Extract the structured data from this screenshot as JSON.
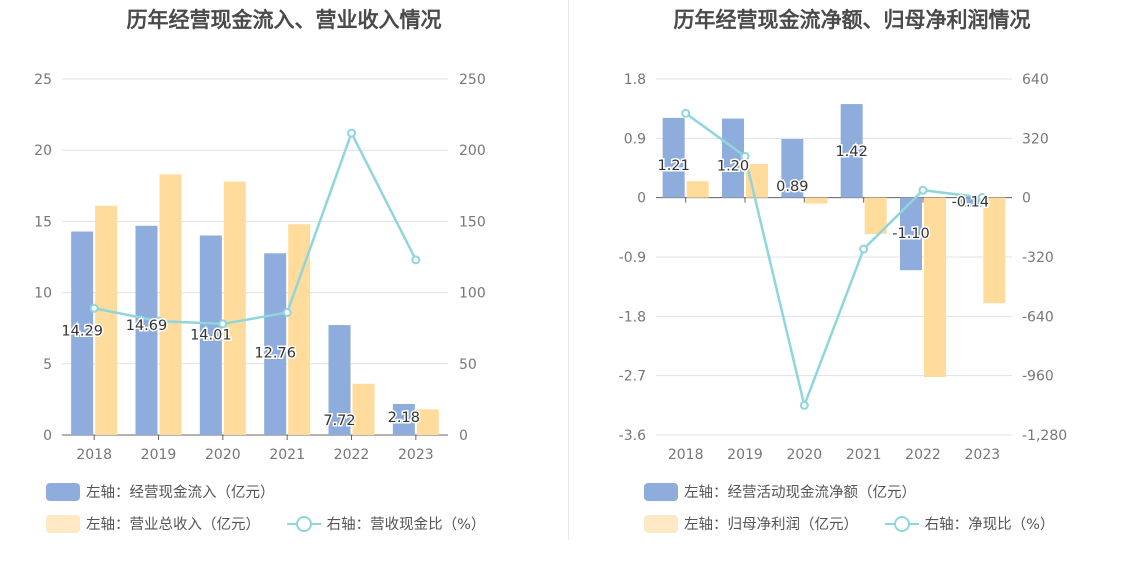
{
  "colors": {
    "bar1": "#8eaddc",
    "bar2": "#ffdb9c",
    "line": "#8fd6dc",
    "grid": "#e0e0ec",
    "axis": "#666666"
  },
  "chart_data": [
    {
      "type": "bar",
      "title": "历年经营现金流入、营业收入情况",
      "categories": [
        "2018",
        "2019",
        "2020",
        "2021",
        "2022",
        "2023"
      ],
      "left_axis": {
        "ylim": [
          0,
          25
        ],
        "ticks": [
          "0",
          "5",
          "10",
          "15",
          "20",
          "25"
        ]
      },
      "right_axis": {
        "ylim": [
          0,
          250
        ],
        "ticks": [
          "0",
          "50",
          "100",
          "150",
          "200",
          "250"
        ]
      },
      "series": [
        {
          "name": "左轴：经营现金流入（亿元）",
          "axis": "left",
          "kind": "bar",
          "values": [
            14.29,
            14.69,
            14.01,
            12.76,
            7.72,
            2.18
          ],
          "labels": [
            "14.29",
            "14.69",
            "14.01",
            "12.76",
            "7.72",
            "2.18"
          ]
        },
        {
          "name": "左轴：营业总收入（亿元）",
          "axis": "left",
          "kind": "bar",
          "values": [
            16.1,
            18.3,
            17.8,
            14.8,
            3.6,
            1.8
          ]
        },
        {
          "name": "右轴：营收现金比（%）",
          "axis": "right",
          "kind": "line",
          "values": [
            89,
            80,
            78,
            86,
            212,
            123
          ]
        }
      ],
      "legend": "bottom"
    },
    {
      "type": "bar",
      "title": "历年经营现金流净额、归母净利润情况",
      "categories": [
        "2018",
        "2019",
        "2020",
        "2021",
        "2022",
        "2023"
      ],
      "left_axis": {
        "ylim": [
          -3.6,
          1.8
        ],
        "ticks": [
          "1.8",
          "0.9",
          "0",
          "-0.9",
          "-1.8",
          "-2.7",
          "-3.6"
        ]
      },
      "right_axis": {
        "ylim": [
          -1280,
          640
        ],
        "ticks": [
          "640",
          "320",
          "0",
          "-320",
          "-640",
          "-960",
          "-1,280"
        ]
      },
      "series": [
        {
          "name": "左轴：经营活动现金流净额（亿元）",
          "axis": "left",
          "kind": "bar",
          "values": [
            1.21,
            1.2,
            0.89,
            1.42,
            -1.1,
            -0.14
          ],
          "labels": [
            "1.21",
            "1.20",
            "0.89",
            "1.42",
            "-1.10",
            "-0.14"
          ]
        },
        {
          "name": "左轴：归母净利润（亿元）",
          "axis": "left",
          "kind": "bar",
          "values": [
            0.25,
            0.51,
            -0.09,
            -0.55,
            -2.72,
            -1.6
          ]
        },
        {
          "name": "右轴：净现比（%）",
          "axis": "right",
          "kind": "line",
          "values": [
            455,
            223,
            -1120,
            -277,
            40,
            1
          ]
        }
      ],
      "legend": "bottom"
    }
  ]
}
